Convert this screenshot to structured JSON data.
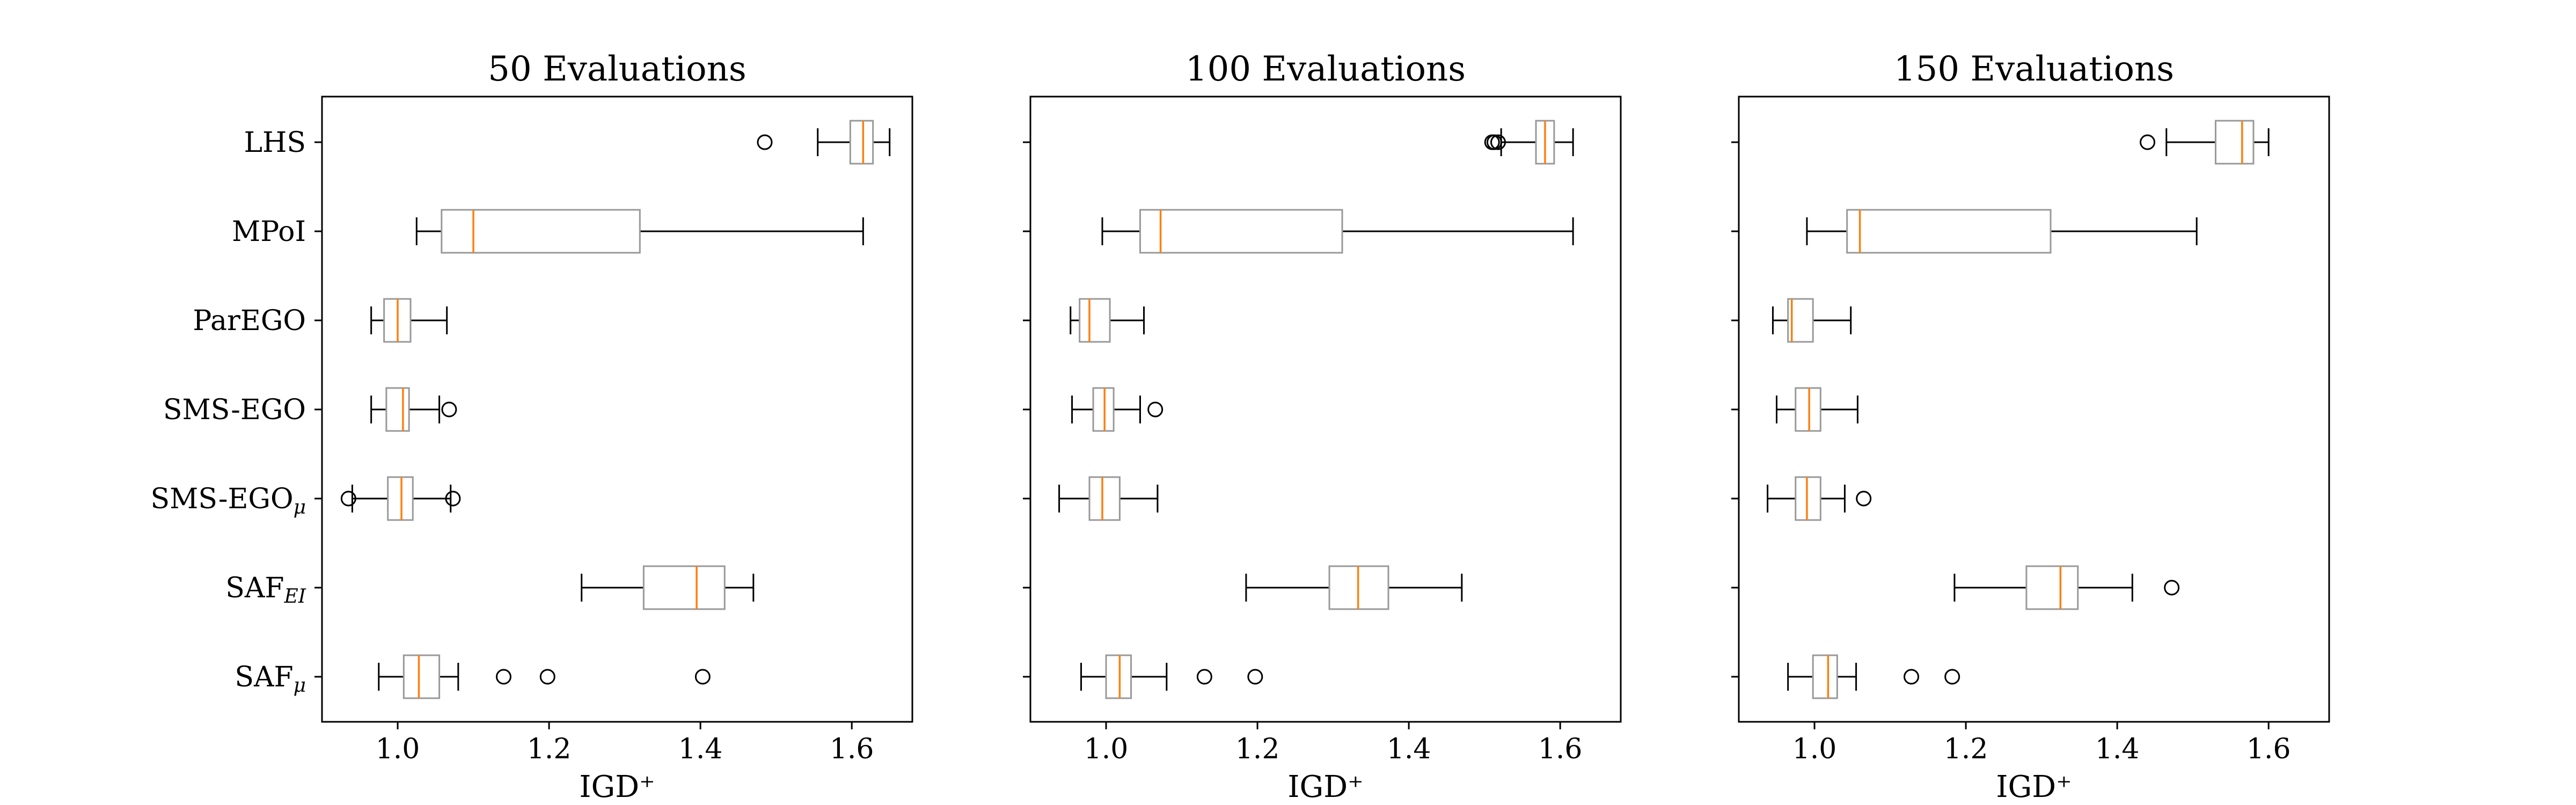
{
  "chart_data": [
    {
      "type": "boxplot",
      "orientation": "horizontal",
      "title": "50 Evaluations",
      "xlabel": "IGD⁺",
      "xlim": [
        0.9,
        1.68
      ],
      "xticks": [
        "1.0",
        "1.2",
        "1.4",
        "1.6"
      ],
      "categories": [
        "LHS",
        "MPoI",
        "ParEGO",
        "SMS-EGO",
        "SMS-EGOμ",
        "SAFEI",
        "SAFμ"
      ],
      "boxes": [
        {
          "label": "LHS",
          "whislo": 1.555,
          "q1": 1.598,
          "med": 1.615,
          "q3": 1.628,
          "whishi": 1.65,
          "fliers": [
            1.485
          ]
        },
        {
          "label": "MPoI",
          "whislo": 1.025,
          "q1": 1.058,
          "med": 1.1,
          "q3": 1.32,
          "whishi": 1.615,
          "fliers": []
        },
        {
          "label": "ParEGO",
          "whislo": 0.965,
          "q1": 0.982,
          "med": 1.0,
          "q3": 1.017,
          "whishi": 1.065,
          "fliers": []
        },
        {
          "label": "SMS-EGO",
          "whislo": 0.965,
          "q1": 0.985,
          "med": 1.007,
          "q3": 1.015,
          "whishi": 1.055,
          "fliers": [
            1.068
          ]
        },
        {
          "label": "SMS-EGOμ",
          "whislo": 0.94,
          "q1": 0.987,
          "med": 1.005,
          "q3": 1.02,
          "whishi": 1.07,
          "fliers": [
            0.935,
            1.073
          ]
        },
        {
          "label": "SAFEI",
          "whislo": 1.243,
          "q1": 1.325,
          "med": 1.395,
          "q3": 1.432,
          "whishi": 1.47,
          "fliers": []
        },
        {
          "label": "SAFμ",
          "whislo": 0.975,
          "q1": 1.008,
          "med": 1.028,
          "q3": 1.055,
          "whishi": 1.08,
          "fliers": [
            1.14,
            1.198,
            1.403
          ]
        }
      ]
    },
    {
      "type": "boxplot",
      "orientation": "horizontal",
      "title": "100 Evaluations",
      "xlabel": "IGD⁺",
      "xlim": [
        0.9,
        1.68
      ],
      "xticks": [
        "1.0",
        "1.2",
        "1.4",
        "1.6"
      ],
      "categories": [
        "LHS",
        "MPoI",
        "ParEGO",
        "SMS-EGO",
        "SMS-EGOμ",
        "SAFEI",
        "SAFμ"
      ],
      "boxes": [
        {
          "label": "LHS",
          "whislo": 1.522,
          "q1": 1.568,
          "med": 1.58,
          "q3": 1.592,
          "whishi": 1.617,
          "fliers": [
            1.51,
            1.513,
            1.518
          ]
        },
        {
          "label": "MPoI",
          "whislo": 0.995,
          "q1": 1.045,
          "med": 1.072,
          "q3": 1.312,
          "whishi": 1.617,
          "fliers": []
        },
        {
          "label": "ParEGO",
          "whislo": 0.953,
          "q1": 0.965,
          "med": 0.978,
          "q3": 1.005,
          "whishi": 1.05,
          "fliers": []
        },
        {
          "label": "SMS-EGO",
          "whislo": 0.955,
          "q1": 0.983,
          "med": 0.998,
          "q3": 1.01,
          "whishi": 1.045,
          "fliers": [
            1.065
          ]
        },
        {
          "label": "SMS-EGOμ",
          "whislo": 0.938,
          "q1": 0.978,
          "med": 0.995,
          "q3": 1.018,
          "whishi": 1.068,
          "fliers": []
        },
        {
          "label": "SAFEI",
          "whislo": 1.185,
          "q1": 1.295,
          "med": 1.333,
          "q3": 1.373,
          "whishi": 1.47,
          "fliers": []
        },
        {
          "label": "SAFμ",
          "whislo": 0.967,
          "q1": 1.0,
          "med": 1.018,
          "q3": 1.033,
          "whishi": 1.08,
          "fliers": [
            1.13,
            1.197
          ]
        }
      ]
    },
    {
      "type": "boxplot",
      "orientation": "horizontal",
      "title": "150 Evaluations",
      "xlabel": "IGD⁺",
      "xlim": [
        0.9,
        1.68
      ],
      "xticks": [
        "1.0",
        "1.2",
        "1.4",
        "1.6"
      ],
      "categories": [
        "LHS",
        "MPoI",
        "ParEGO",
        "SMS-EGO",
        "SMS-EGOμ",
        "SAFEI",
        "SAFμ"
      ],
      "boxes": [
        {
          "label": "LHS",
          "whislo": 1.465,
          "q1": 1.53,
          "med": 1.565,
          "q3": 1.58,
          "whishi": 1.6,
          "fliers": [
            1.44
          ]
        },
        {
          "label": "MPoI",
          "whislo": 0.99,
          "q1": 1.043,
          "med": 1.06,
          "q3": 1.312,
          "whishi": 1.505,
          "fliers": []
        },
        {
          "label": "ParEGO",
          "whislo": 0.945,
          "q1": 0.965,
          "med": 0.97,
          "q3": 0.998,
          "whishi": 1.048,
          "fliers": []
        },
        {
          "label": "SMS-EGO",
          "whislo": 0.95,
          "q1": 0.975,
          "med": 0.993,
          "q3": 1.008,
          "whishi": 1.057,
          "fliers": []
        },
        {
          "label": "SMS-EGOμ",
          "whislo": 0.938,
          "q1": 0.975,
          "med": 0.99,
          "q3": 1.008,
          "whishi": 1.04,
          "fliers": [
            1.065
          ]
        },
        {
          "label": "SAFEI",
          "whislo": 1.185,
          "q1": 1.28,
          "med": 1.325,
          "q3": 1.348,
          "whishi": 1.42,
          "fliers": [
            1.472
          ]
        },
        {
          "label": "SAFμ",
          "whislo": 0.965,
          "q1": 0.998,
          "med": 1.018,
          "q3": 1.03,
          "whishi": 1.055,
          "fliers": [
            1.128,
            1.182
          ]
        }
      ]
    }
  ],
  "colors": {
    "median": "#ff7f0e",
    "box": "#999999",
    "whisker": "#000000"
  }
}
